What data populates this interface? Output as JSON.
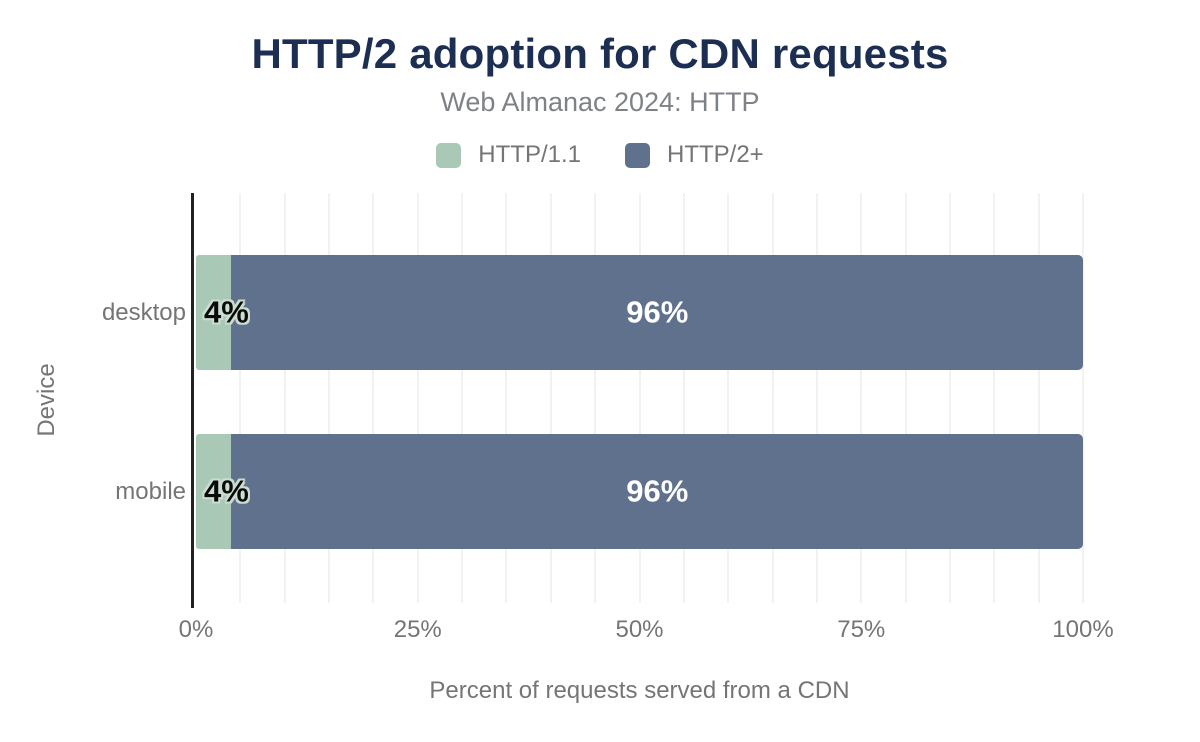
{
  "title": "HTTP/2 adoption for CDN requests",
  "subtitle": "Web Almanac 2024: HTTP",
  "chart_data": {
    "type": "bar",
    "orientation": "horizontal",
    "stacked": true,
    "title": "HTTP/2 adoption for CDN requests",
    "subtitle": "Web Almanac 2024: HTTP",
    "categories": [
      "desktop",
      "mobile"
    ],
    "series": [
      {
        "name": "HTTP/1.1",
        "color": "#a9c8b5",
        "values": [
          4,
          4
        ],
        "labels": [
          "4%",
          "4%"
        ]
      },
      {
        "name": "HTTP/2+",
        "color": "#5f718c",
        "values": [
          96,
          96
        ],
        "labels": [
          "96%",
          "96%"
        ]
      }
    ],
    "xlabel": "Percent of requests served from a CDN",
    "ylabel": "Device",
    "xlim": [
      0,
      100
    ],
    "x_ticks": [
      "0%",
      "25%",
      "50%",
      "75%",
      "100%"
    ],
    "minor_grid_step_percent": 5,
    "grid": true,
    "legend_position": "top"
  },
  "colors": {
    "background": "#ffffff",
    "title_color": "#1c2f52",
    "subtitle_gray": "#7e8287",
    "text_gray": "#757575",
    "gridline": "#f2f2f2",
    "axis_line": "#212121"
  }
}
